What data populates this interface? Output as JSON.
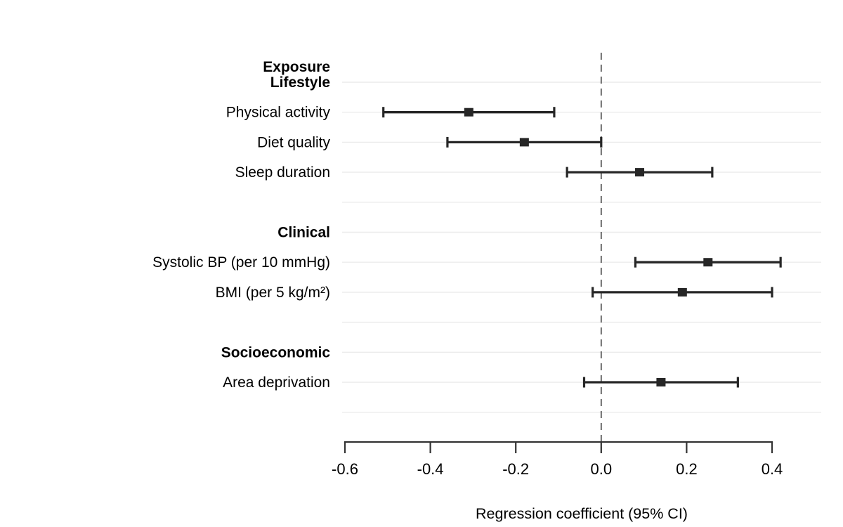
{
  "figure": {
    "column_header": "Exposure",
    "xlabel": "Regression coefficient (95% CI)"
  },
  "chart_data": {
    "type": "scatter",
    "subtype": "forest-plot",
    "title": "",
    "xlabel": "Regression coefficient (95% CI)",
    "ylabel": "",
    "column_header": "Exposure",
    "axis_range": [
      -0.6,
      0.4
    ],
    "xlim": [
      -0.605,
      0.515
    ],
    "x_ticks": [
      -0.6,
      -0.4,
      -0.2,
      0.0,
      0.2,
      0.4
    ],
    "x_tick_labels": [
      "-0.6",
      "-0.4",
      "-0.2",
      "0.0",
      "0.2",
      "0.4"
    ],
    "zero_line": 0.0,
    "grid": "horizontal-light",
    "legend": "none",
    "groups": [
      {
        "name": "Lifestyle",
        "items": [
          {
            "label": "Physical activity",
            "estimate": -0.31,
            "ci_low": -0.51,
            "ci_high": -0.11
          },
          {
            "label": "Diet quality",
            "estimate": -0.18,
            "ci_low": -0.36,
            "ci_high": 0.0
          },
          {
            "label": "Sleep duration",
            "estimate": 0.09,
            "ci_low": -0.08,
            "ci_high": 0.26
          }
        ]
      },
      {
        "name": "Clinical",
        "items": [
          {
            "label": "Systolic BP (per 10 mmHg)",
            "estimate": 0.25,
            "ci_low": 0.08,
            "ci_high": 0.42
          },
          {
            "label": "BMI (per 5 kg/m²)",
            "estimate": 0.19,
            "ci_low": -0.02,
            "ci_high": 0.4
          }
        ]
      },
      {
        "name": "Socioeconomic",
        "items": [
          {
            "label": "Area deprivation",
            "estimate": 0.14,
            "ci_low": -0.04,
            "ci_high": 0.32
          }
        ]
      }
    ],
    "colors": {
      "marker": "#262626",
      "ci_line": "#262626",
      "gridline": "#ebebeb",
      "zero_line": "#4d4d4d",
      "axis": "#333333",
      "text": "#000000"
    }
  }
}
